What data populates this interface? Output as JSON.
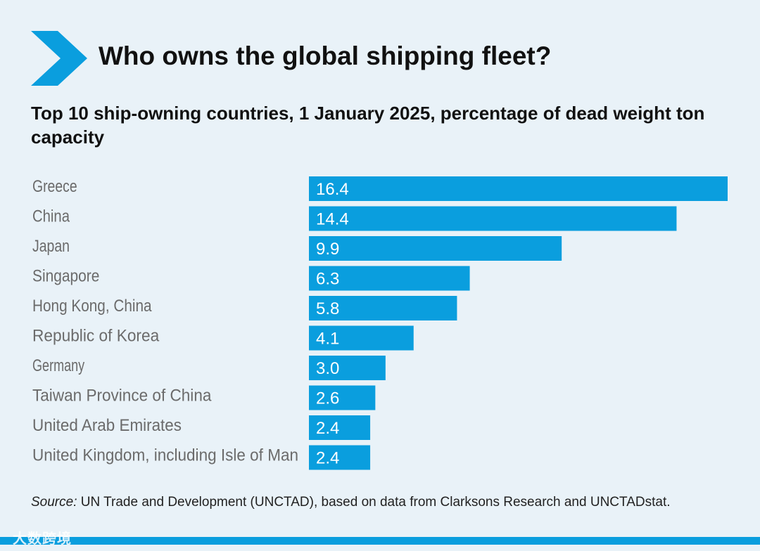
{
  "colors": {
    "bar": "#0a9ede",
    "accent": "#0a9ede",
    "label": "#6b6b6b",
    "background": "#e9f2f8"
  },
  "title": "Who owns the global shipping fleet?",
  "subtitle": "Top 10 ship-owning countries, 1 January 2025, percentage of dead weight ton capacity",
  "source": {
    "label": "Source:",
    "text": " UN Trade and Development (UNCTAD), based on data from Clarksons Research and UNCTADstat."
  },
  "watermark": "大数跨境",
  "chart_data": {
    "type": "bar",
    "orientation": "horizontal",
    "title": "Who owns the global shipping fleet?",
    "subtitle": "Top 10 ship-owning countries, 1 January 2025, percentage of dead weight ton capacity",
    "xlabel": "",
    "ylabel": "",
    "grid": false,
    "legend": "none",
    "categories": [
      "Greece",
      "China",
      "Japan",
      "Singapore",
      "Hong Kong, China",
      "Republic of Korea",
      "Germany",
      "Taiwan Province of China",
      "United Arab Emirates",
      "United Kingdom, including Isle of Man"
    ],
    "values": [
      16.4,
      14.4,
      9.9,
      6.3,
      5.8,
      4.1,
      3.0,
      2.6,
      2.4,
      2.4
    ],
    "value_labels": [
      "16.4",
      "14.4",
      "9.9",
      "6.3",
      "5.8",
      "4.1",
      "3.0",
      "2.6",
      "2.4",
      "2.4"
    ],
    "xlim": [
      0,
      16.4
    ]
  }
}
